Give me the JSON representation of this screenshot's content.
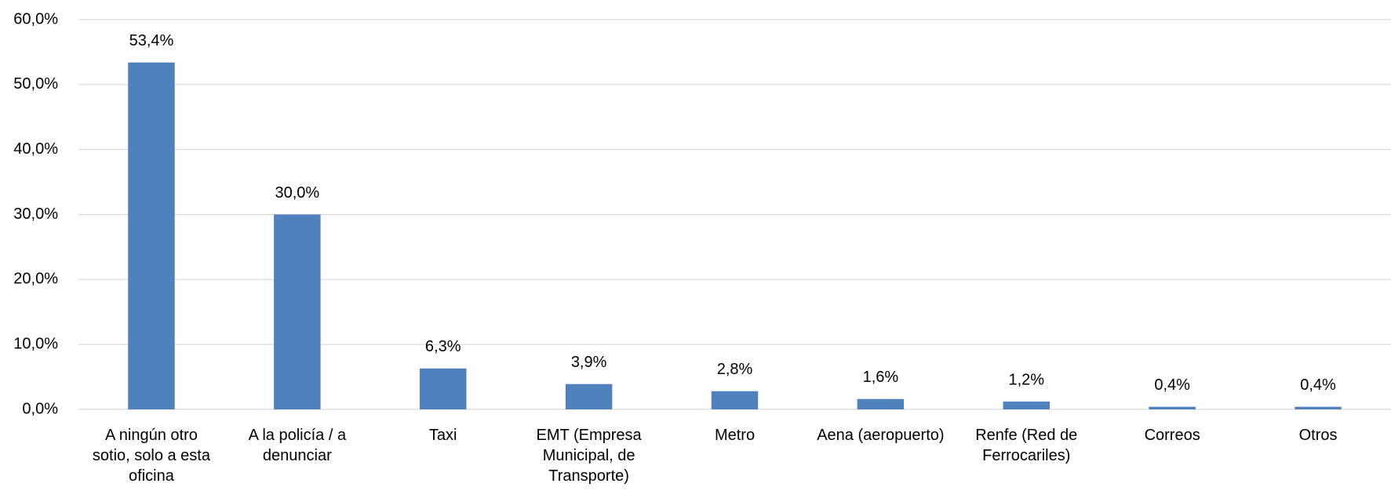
{
  "chart_data": {
    "type": "bar",
    "categories": [
      "A ningún otro sotio, solo a esta oficina",
      "A la policía / a denunciar",
      "Taxi",
      "EMT (Empresa Municipal, de Transporte)",
      "Metro",
      "Aena (aeropuerto)",
      "Renfe (Red de Ferrocariles)",
      "Correos",
      "Otros"
    ],
    "values": [
      53.4,
      30.0,
      6.3,
      3.9,
      2.8,
      1.6,
      1.2,
      0.4,
      0.4
    ],
    "value_labels": [
      "53,4%",
      "30,0%",
      "6,3%",
      "3,9%",
      "2,8%",
      "1,6%",
      "1,2%",
      "0,4%",
      "0,4%"
    ],
    "color": "#4f81bd",
    "ylim": [
      0,
      60
    ],
    "yticks": [
      {
        "value": 0,
        "label": "0,0%"
      },
      {
        "value": 10,
        "label": "10,0%"
      },
      {
        "value": 20,
        "label": "20,0%"
      },
      {
        "value": 30,
        "label": "30,0%"
      },
      {
        "value": 40,
        "label": "40,0%"
      },
      {
        "value": 50,
        "label": "50,0%"
      },
      {
        "value": 60,
        "label": "60,0%"
      }
    ],
    "grid": true
  }
}
